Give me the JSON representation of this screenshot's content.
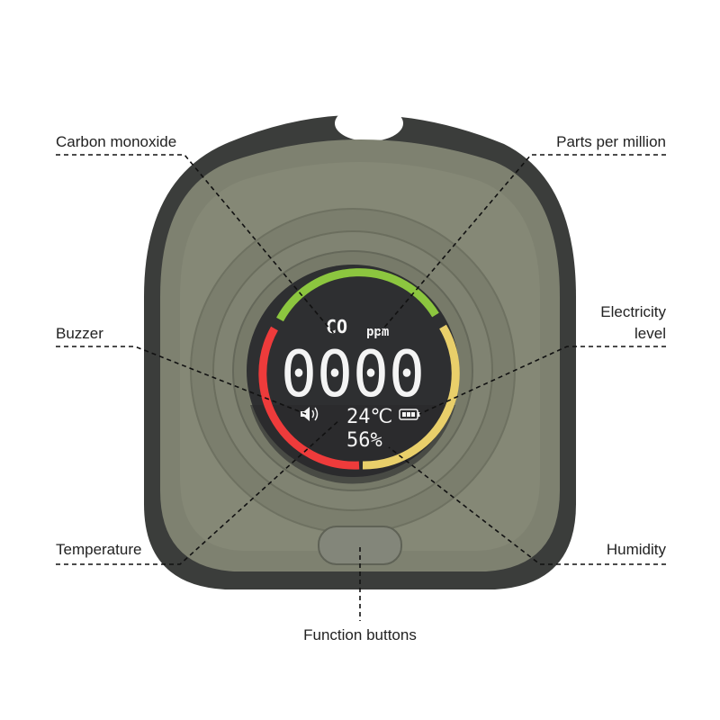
{
  "labels": {
    "carbon_monoxide": "Carbon monoxide",
    "parts_per_million": "Parts per million",
    "buzzer": "Buzzer",
    "electricity_level_line1": "Electricity",
    "electricity_level_line2": "level",
    "temperature": "Temperature",
    "humidity": "Humidity",
    "function_buttons": "Function buttons"
  },
  "display": {
    "gas": "CO",
    "unit": "ppm",
    "reading": "0000",
    "temperature": "24℃",
    "humidity": "56%"
  },
  "colors": {
    "shell": "#3b3d3b",
    "body": "#7e8170",
    "screen": "#2e2f31",
    "arc_green": "#8cc63f",
    "arc_red": "#ee3b3b",
    "arc_yellow": "#e9cf6a"
  }
}
